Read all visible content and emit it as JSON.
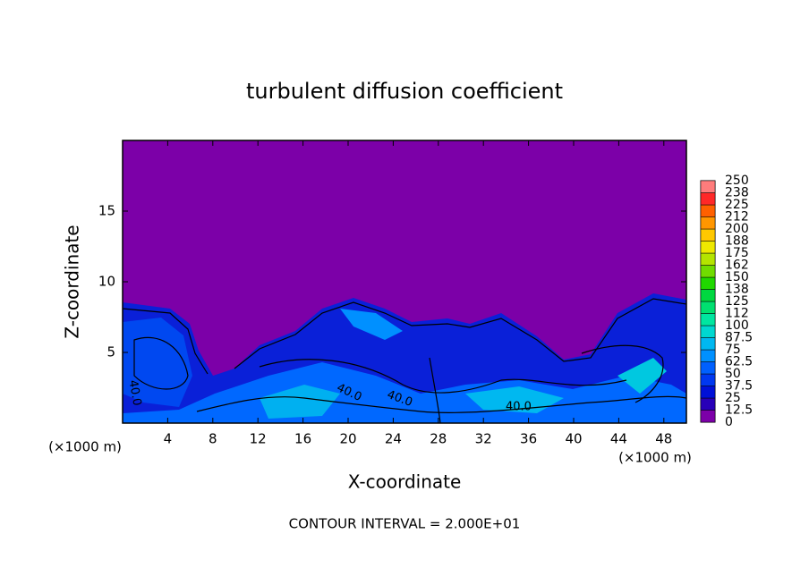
{
  "chart_data": {
    "type": "contour",
    "title": "turbulent diffusion coefficient",
    "x_label": "X-coordinate",
    "y_label": "Z-coordinate",
    "unit_label": "(×1000 m)",
    "annotation": "CONTOUR INTERVAL = 2.000E+01",
    "contour_label": "40.0",
    "xlim": [
      0,
      50
    ],
    "xticks": [
      4,
      8,
      12,
      16,
      20,
      24,
      28,
      32,
      36,
      40,
      44,
      48
    ],
    "ylim": [
      0,
      20
    ],
    "yticks": [
      5,
      10,
      15
    ],
    "colorbar": {
      "ticks": [
        0,
        12.5,
        25,
        37.5,
        50,
        62.5,
        75,
        87.5,
        100,
        112,
        125,
        138,
        150,
        162,
        175,
        188,
        200,
        212,
        225,
        238,
        250
      ],
      "colors": [
        "#7c00a8",
        "#2800b8",
        "#0010d8",
        "#0038f0",
        "#0060ff",
        "#0090ff",
        "#00b8f0",
        "#00d8d0",
        "#00e6a0",
        "#00e070",
        "#00d840",
        "#20d800",
        "#70dc00",
        "#b4e400",
        "#eee800",
        "#ffc800",
        "#ff9600",
        "#ff6000",
        "#ff2828",
        "#ff7c7c"
      ]
    }
  }
}
